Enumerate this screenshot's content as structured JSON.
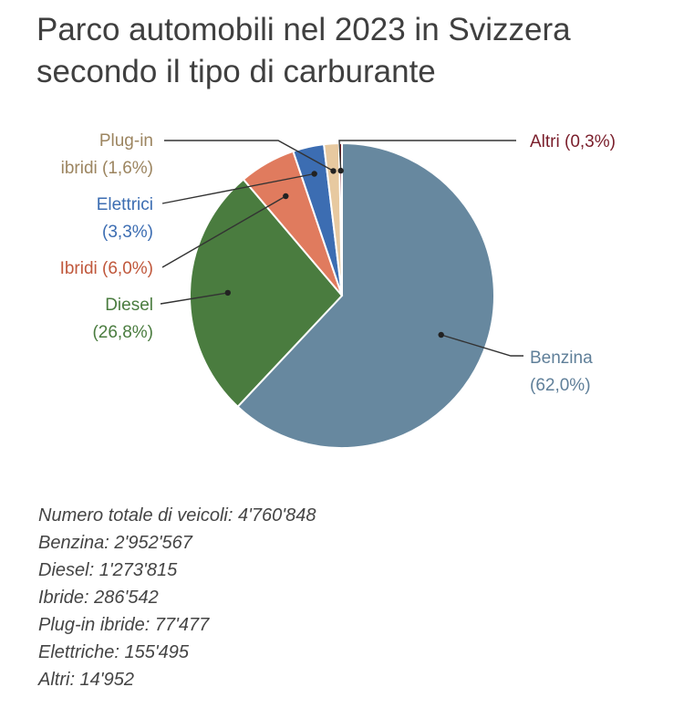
{
  "title_lines": [
    "Parco automobili nel 2023 in Svizzera",
    "secondo il tipo di carburante"
  ],
  "chart_data": {
    "type": "pie",
    "title": "Parco automobili nel 2023 in Svizzera secondo il tipo di carburante",
    "slices": [
      {
        "key": "benzina",
        "label": "Benzina",
        "pct_text": "(62,0%)",
        "value": 62.0,
        "color": "#67889f",
        "text_color": "#5f7f99"
      },
      {
        "key": "diesel",
        "label": "Diesel",
        "pct_text": "(26,8%)",
        "value": 26.8,
        "color": "#4a7c3f",
        "text_color": "#4a7c3f"
      },
      {
        "key": "ibridi",
        "label": "Ibridi",
        "pct_text": "(6,0%)",
        "value": 6.0,
        "color": "#e07b5e",
        "text_color": "#c0583c"
      },
      {
        "key": "elettrici",
        "label": "Elettrici",
        "pct_text": "(3,3%)",
        "value": 3.3,
        "color": "#3c6db2",
        "text_color": "#3c6db2"
      },
      {
        "key": "plugin",
        "label": "Plug-in ibridi",
        "pct_text": "(1,6%)",
        "value": 1.6,
        "color": "#e7c9a0",
        "text_color": "#9c8560"
      },
      {
        "key": "altri",
        "label": "Altri",
        "pct_text": "(0,3%)",
        "value": 0.3,
        "color": "#7a1e2b",
        "text_color": "#7a1e2b"
      }
    ]
  },
  "notes": [
    "Numero totale di veicoli: 4'760'848",
    "Benzina: 2'952'567",
    "Diesel: 1'273'815",
    "Ibride: 286'542",
    "Plug-in ibride: 77'477",
    "Elettriche: 155'495",
    "Altri: 14'952"
  ]
}
